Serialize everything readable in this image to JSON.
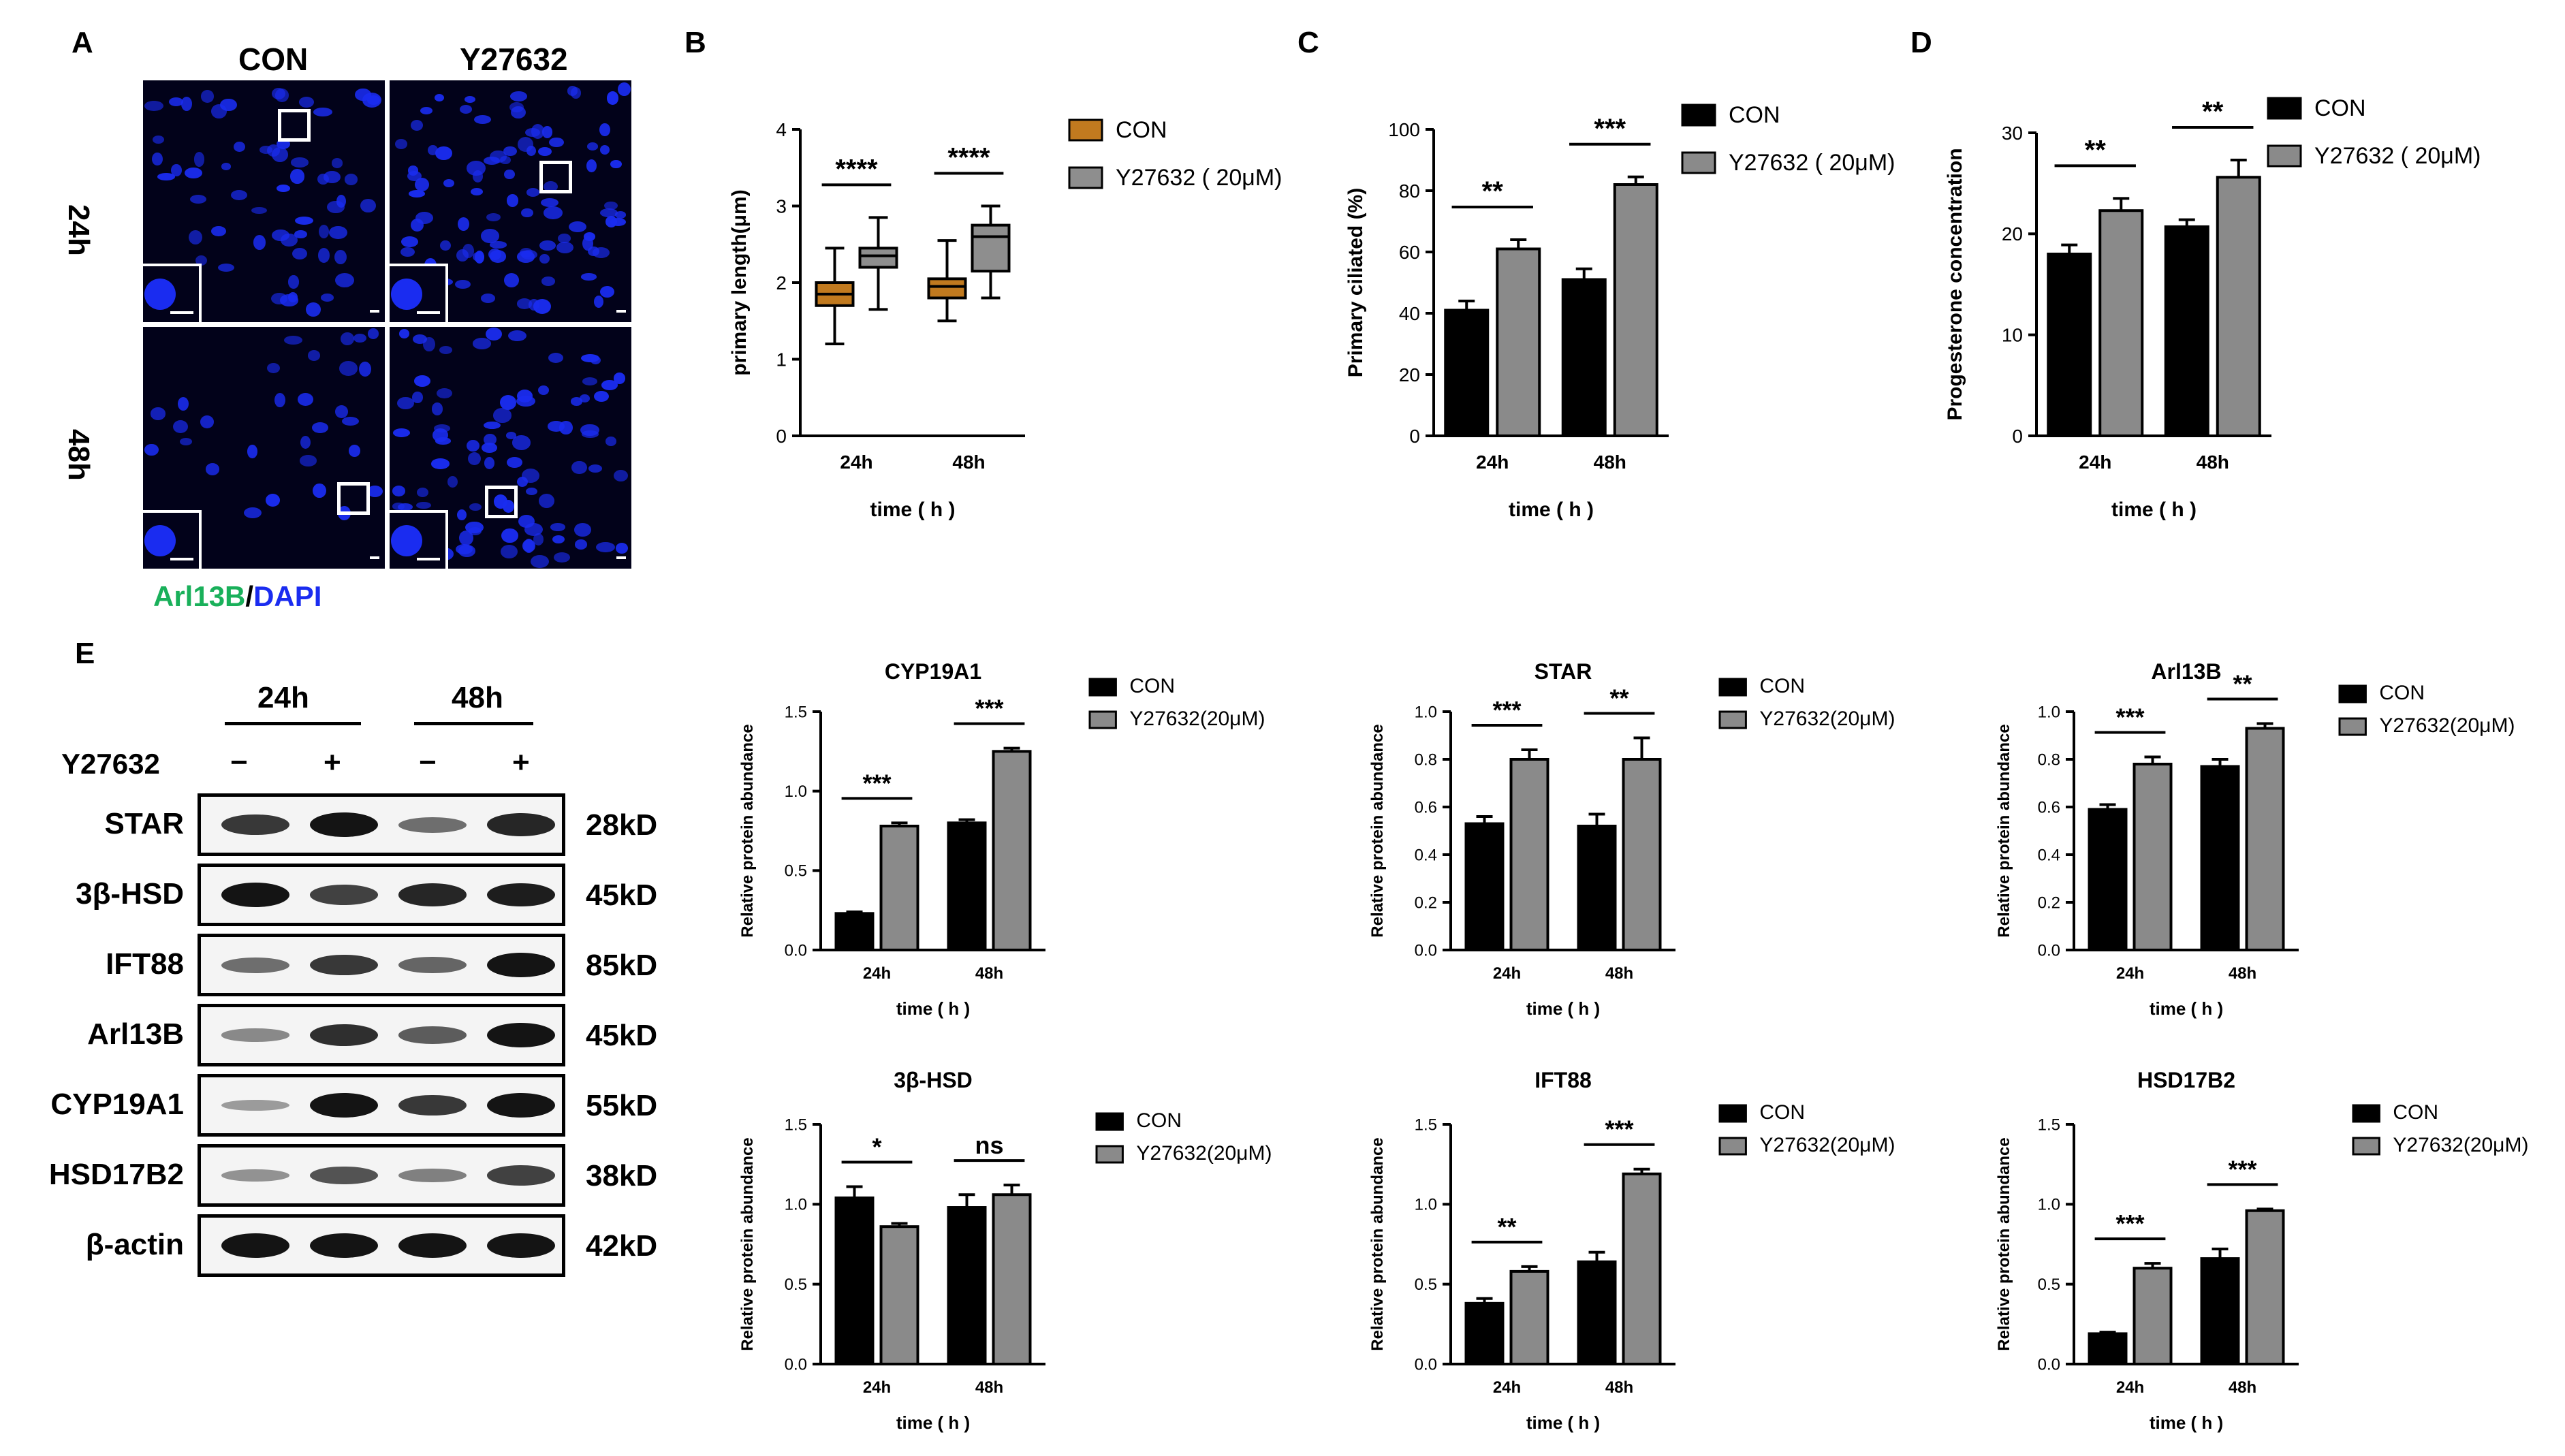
{
  "panels": {
    "A": "A",
    "B": "B",
    "C": "C",
    "D": "D",
    "E": "E"
  },
  "micro": {
    "col_con": "CON",
    "col_y": "Y27632",
    "row_24": "24h",
    "row_48": "48h",
    "stain_green": "Arl13B",
    "stain_sep": "/",
    "stain_blue": "DAPI"
  },
  "western": {
    "time_24": "24h",
    "time_48": "48h",
    "treatment": "Y27632",
    "signs": [
      "−",
      "+",
      "−",
      "+"
    ],
    "rows": [
      {
        "name": "STAR",
        "kd": "28kD",
        "bands": [
          0.8,
          1.0,
          0.5,
          0.9
        ]
      },
      {
        "name": "3β-HSD",
        "kd": "45kD",
        "bands": [
          1.0,
          0.75,
          0.9,
          0.95
        ]
      },
      {
        "name": "IFT88",
        "kd": "85kD",
        "bands": [
          0.5,
          0.8,
          0.55,
          1.0
        ]
      },
      {
        "name": "Arl13B",
        "kd": "45kD",
        "bands": [
          0.35,
          0.85,
          0.6,
          1.0
        ]
      },
      {
        "name": "CYP19A1",
        "kd": "55kD",
        "bands": [
          0.25,
          1.0,
          0.8,
          1.0
        ]
      },
      {
        "name": "HSD17B2",
        "kd": "38kD",
        "bands": [
          0.3,
          0.65,
          0.4,
          0.75
        ]
      },
      {
        "name": "β-actin",
        "kd": "42kD",
        "bands": [
          1.0,
          1.0,
          1.0,
          1.0
        ]
      }
    ]
  },
  "colors": {
    "con_box": "#c17a1f",
    "y_box": "#8e8e8e",
    "con_bar": "#000000",
    "y_bar": "#8a8a8a"
  },
  "chart_data": [
    {
      "id": "B",
      "type": "box",
      "title": "",
      "ylabel": "primary length(μm)",
      "xlabel": "time ( h )",
      "ylim": [
        0,
        4
      ],
      "yticks": [
        0,
        1,
        2,
        3,
        4
      ],
      "categories": [
        "24h",
        "48h"
      ],
      "legend": [
        "CON",
        "Y27632 ( 20μM)"
      ],
      "series": [
        {
          "name": "CON",
          "boxes": [
            {
              "min": 1.2,
              "q1": 1.7,
              "median": 1.85,
              "q3": 2.0,
              "max": 2.45
            },
            {
              "min": 1.5,
              "q1": 1.8,
              "median": 1.95,
              "q3": 2.05,
              "max": 2.55
            }
          ]
        },
        {
          "name": "Y27632 ( 20μM)",
          "boxes": [
            {
              "min": 1.65,
              "q1": 2.2,
              "median": 2.35,
              "q3": 2.45,
              "max": 2.85
            },
            {
              "min": 1.8,
              "q1": 2.15,
              "median": 2.6,
              "q3": 2.75,
              "max": 3.0
            }
          ]
        }
      ],
      "sig": [
        "****",
        "****"
      ]
    },
    {
      "id": "C",
      "type": "bar",
      "title": "",
      "ylabel": "Primary ciliated (%)",
      "xlabel": "time ( h )",
      "ylim": [
        0,
        100
      ],
      "yticks": [
        0,
        20,
        40,
        60,
        80,
        100
      ],
      "categories": [
        "24h",
        "48h"
      ],
      "legend": [
        "CON",
        "Y27632 ( 20μM)"
      ],
      "series": [
        {
          "name": "CON",
          "values": [
            41,
            51
          ],
          "errors": [
            3,
            3.5
          ]
        },
        {
          "name": "Y27632 ( 20μM)",
          "values": [
            61,
            82
          ],
          "errors": [
            3,
            2.5
          ]
        }
      ],
      "sig": [
        "**",
        "***"
      ]
    },
    {
      "id": "D",
      "type": "bar",
      "title": "",
      "ylabel": "Progesterone concentration",
      "xlabel": "time ( h )",
      "ylim": [
        0,
        30
      ],
      "yticks": [
        0,
        10,
        20,
        30
      ],
      "categories": [
        "24h",
        "48h"
      ],
      "legend": [
        "CON",
        "Y27632 ( 20μM)"
      ],
      "series": [
        {
          "name": "CON",
          "values": [
            18,
            20.7
          ],
          "errors": [
            0.9,
            0.7
          ]
        },
        {
          "name": "Y27632 ( 20μM)",
          "values": [
            22.3,
            25.6
          ],
          "errors": [
            1.2,
            1.7
          ]
        }
      ],
      "sig": [
        "**",
        "**"
      ]
    },
    {
      "id": "CYP19A1",
      "type": "bar",
      "title": "CYP19A1",
      "ylabel": "Relative protein abundance",
      "xlabel": "time ( h )",
      "ylim": [
        0,
        1.5
      ],
      "yticks": [
        "0.0",
        "0.5",
        "1.0",
        "1.5"
      ],
      "categories": [
        "24h",
        "48h"
      ],
      "legend": [
        "CON",
        "Y27632(20μM)"
      ],
      "series": [
        {
          "name": "CON",
          "values": [
            0.23,
            0.8
          ],
          "errors": [
            0.01,
            0.02
          ]
        },
        {
          "name": "Y27632(20μM)",
          "values": [
            0.78,
            1.25
          ],
          "errors": [
            0.02,
            0.02
          ]
        }
      ],
      "sig": [
        "***",
        "***"
      ]
    },
    {
      "id": "STAR",
      "type": "bar",
      "title": "STAR",
      "ylabel": "Relative protein abundance",
      "xlabel": "time ( h )",
      "ylim": [
        0,
        1.0
      ],
      "yticks": [
        "0.0",
        "0.2",
        "0.4",
        "0.6",
        "0.8",
        "1.0"
      ],
      "categories": [
        "24h",
        "48h"
      ],
      "legend": [
        "CON",
        "Y27632(20μM)"
      ],
      "series": [
        {
          "name": "CON",
          "values": [
            0.53,
            0.52
          ],
          "errors": [
            0.03,
            0.05
          ]
        },
        {
          "name": "Y27632(20μM)",
          "values": [
            0.8,
            0.8
          ],
          "errors": [
            0.04,
            0.09
          ]
        }
      ],
      "sig": [
        "***",
        "**"
      ]
    },
    {
      "id": "Arl13B",
      "type": "bar",
      "title": "Arl13B",
      "ylabel": "Relative protein abundance",
      "xlabel": "time ( h )",
      "ylim": [
        0,
        1.0
      ],
      "yticks": [
        "0.0",
        "0.2",
        "0.4",
        "0.6",
        "0.8",
        "1.0"
      ],
      "categories": [
        "24h",
        "48h"
      ],
      "legend": [
        "CON",
        "Y27632(20μM)"
      ],
      "series": [
        {
          "name": "CON",
          "values": [
            0.59,
            0.77
          ],
          "errors": [
            0.02,
            0.03
          ]
        },
        {
          "name": "Y27632(20μM)",
          "values": [
            0.78,
            0.93
          ],
          "errors": [
            0.03,
            0.02
          ]
        }
      ],
      "sig": [
        "***",
        "**"
      ]
    },
    {
      "id": "3B-HSD",
      "type": "bar",
      "title": "3β-HSD",
      "ylabel": "Relative protein abundance",
      "xlabel": "time ( h )",
      "ylim": [
        0,
        1.5
      ],
      "yticks": [
        "0.0",
        "0.5",
        "1.0",
        "1.5"
      ],
      "categories": [
        "24h",
        "48h"
      ],
      "legend": [
        "CON",
        "Y27632(20μM)"
      ],
      "series": [
        {
          "name": "CON",
          "values": [
            1.04,
            0.98
          ],
          "errors": [
            0.07,
            0.08
          ]
        },
        {
          "name": "Y27632(20μM)",
          "values": [
            0.86,
            1.06
          ],
          "errors": [
            0.02,
            0.06
          ]
        }
      ],
      "sig": [
        "*",
        "ns"
      ]
    },
    {
      "id": "IFT88",
      "type": "bar",
      "title": "IFT88",
      "ylabel": "Relative protein abundance",
      "xlabel": "time ( h )",
      "ylim": [
        0,
        1.5
      ],
      "yticks": [
        "0.0",
        "0.5",
        "1.0",
        "1.5"
      ],
      "categories": [
        "24h",
        "48h"
      ],
      "legend": [
        "CON",
        "Y27632(20μM)"
      ],
      "series": [
        {
          "name": "CON",
          "values": [
            0.38,
            0.64
          ],
          "errors": [
            0.03,
            0.06
          ]
        },
        {
          "name": "Y27632(20μM)",
          "values": [
            0.58,
            1.19
          ],
          "errors": [
            0.03,
            0.03
          ]
        }
      ],
      "sig": [
        "**",
        "***"
      ]
    },
    {
      "id": "HSD17B2",
      "type": "bar",
      "title": "HSD17B2",
      "ylabel": "Relative protein abundance",
      "xlabel": "time ( h )",
      "ylim": [
        0,
        1.5
      ],
      "yticks": [
        "0.0",
        "0.5",
        "1.0",
        "1.5"
      ],
      "categories": [
        "24h",
        "48h"
      ],
      "legend": [
        "CON",
        "Y27632(20μM)"
      ],
      "series": [
        {
          "name": "CON",
          "values": [
            0.19,
            0.66
          ],
          "errors": [
            0.01,
            0.06
          ]
        },
        {
          "name": "Y27632(20μM)",
          "values": [
            0.6,
            0.96
          ],
          "errors": [
            0.03,
            0.01
          ]
        }
      ],
      "sig": [
        "***",
        "***"
      ]
    }
  ]
}
